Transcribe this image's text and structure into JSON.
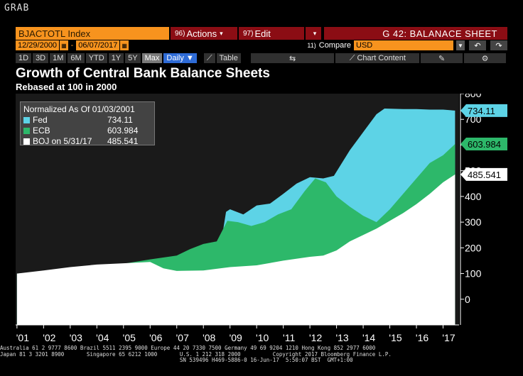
{
  "grab_label": "GRAB",
  "toolbar": {
    "ticker": "BJACTOTL Index",
    "actions_num": "96)",
    "actions_label": "Actions",
    "edit_num": "97)",
    "edit_label": "Edit",
    "caret": "▾",
    "screen_title": "G 42: BALANACE SHEET",
    "start_date": "12/29/2000",
    "end_date": "06/07/2017",
    "compare_num": "11)",
    "compare_label": "Compare",
    "currency": "USD",
    "periods": [
      "1D",
      "3D",
      "1M",
      "6M",
      "YTD",
      "1Y",
      "5Y",
      "Max"
    ],
    "active_period": "Max",
    "frequency": "Daily",
    "table_label": "Table",
    "chart_content_label": "Chart Content"
  },
  "chart_data": {
    "type": "area",
    "title": "Growth of Central Bank Balance Sheets",
    "subtitle": "Rebased at 100 in 2000",
    "legend_header": "Normalized As Of 01/03/2001",
    "x_tick_labels": [
      "'01",
      "'02",
      "'03",
      "'04",
      "'05",
      "'06",
      "'07",
      "'08",
      "'09",
      "'10",
      "'11",
      "'12",
      "'13",
      "'14",
      "'15",
      "'16",
      "'17"
    ],
    "y_ticks": [
      0,
      100,
      200,
      300,
      400,
      500,
      600,
      700,
      800
    ],
    "ylim": [
      -100,
      800
    ],
    "xlim": [
      2000.95,
      2017.6
    ],
    "series": [
      {
        "name": "Fed",
        "legend_value": "734.11",
        "last_label": "734.11",
        "color": "#5dd3e6",
        "x": [
          2001,
          2002,
          2003,
          2004,
          2005,
          2006,
          2007,
          2007.6,
          2008.6,
          2008.75,
          2008.85,
          2009.0,
          2009.5,
          2010.0,
          2010.5,
          2011.0,
          2011.5,
          2012.0,
          2012.5,
          2012.9,
          2013.5,
          2014.0,
          2014.5,
          2014.8,
          2015.5,
          2016.0,
          2016.5,
          2017.0,
          2017.45
        ],
        "values": [
          100,
          105,
          113,
          125,
          130,
          135,
          140,
          145,
          150,
          275,
          340,
          350,
          330,
          365,
          372,
          410,
          450,
          475,
          470,
          480,
          580,
          650,
          720,
          742,
          740,
          740,
          738,
          738,
          734.11
        ]
      },
      {
        "name": "ECB",
        "legend_value": "603.984",
        "last_label": "603.984",
        "color": "#2db86a",
        "x": [
          2001,
          2002,
          2003,
          2004,
          2005,
          2006,
          2007,
          2007.5,
          2008.0,
          2008.5,
          2008.9,
          2009.3,
          2009.8,
          2010.3,
          2010.8,
          2011.3,
          2011.8,
          2012.2,
          2012.6,
          2013.0,
          2013.5,
          2014.0,
          2014.5,
          2015.0,
          2015.5,
          2016.0,
          2016.5,
          2017.0,
          2017.45
        ],
        "values": [
          100,
          108,
          118,
          128,
          138,
          155,
          170,
          195,
          215,
          225,
          305,
          300,
          285,
          300,
          330,
          350,
          420,
          470,
          455,
          400,
          360,
          325,
          300,
          350,
          410,
          470,
          530,
          560,
          603.984
        ]
      },
      {
        "name": "BOJ on 5/31/17",
        "legend_value": "485.541",
        "last_label": "485.541",
        "color": "#ffffff",
        "x": [
          2001,
          2002,
          2003,
          2004,
          2005,
          2006,
          2006.5,
          2007,
          2008,
          2009,
          2010,
          2011,
          2012,
          2012.5,
          2013,
          2013.5,
          2014,
          2014.5,
          2015,
          2015.5,
          2016,
          2016.5,
          2017,
          2017.45
        ],
        "values": [
          100,
          112,
          125,
          135,
          140,
          145,
          120,
          110,
          112,
          125,
          132,
          150,
          165,
          170,
          190,
          225,
          250,
          275,
          305,
          335,
          370,
          410,
          455,
          485.541
        ]
      }
    ],
    "legend_position": "top-left",
    "grid": false
  },
  "footer": {
    "line1": "Australia 61 2 9777 8600 Brazil 5511 2395 9000 Europe 44 20 7330 7500 Germany 49 69 9204 1210 Hong Kong 852 2977 6000",
    "line2": "Japan 81 3 3201 8900       Singapore 65 6212 1000       U.S. 1 212 318 2000          Copyright 2017 Bloomberg Finance L.P.",
    "line3": "                                                        SN 539496 H469-5886-0 16-Jun-17  5:50:07 BST  GMT+1:00"
  }
}
